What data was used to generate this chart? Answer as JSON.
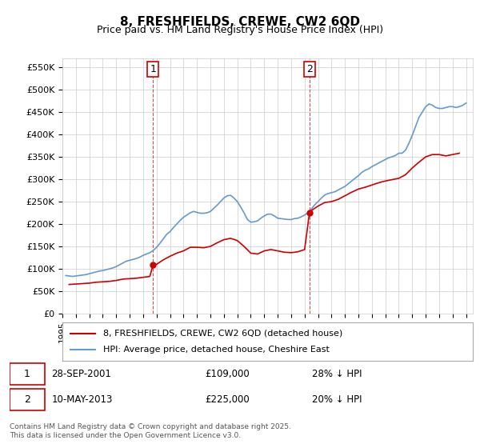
{
  "title": "8, FRESHFIELDS, CREWE, CW2 6QD",
  "subtitle": "Price paid vs. HM Land Registry's House Price Index (HPI)",
  "ylabel_ticks": [
    "£0",
    "£50K",
    "£100K",
    "£150K",
    "£200K",
    "£250K",
    "£300K",
    "£350K",
    "£400K",
    "£450K",
    "£500K",
    "£550K"
  ],
  "ytick_values": [
    0,
    50000,
    100000,
    150000,
    200000,
    250000,
    300000,
    350000,
    400000,
    450000,
    500000,
    550000
  ],
  "ylim": [
    0,
    570000
  ],
  "xlim_start": 1995.0,
  "xlim_end": 2025.5,
  "vline1_x": 2001.74,
  "vline2_x": 2013.36,
  "purchase1": {
    "label": "1",
    "date": "28-SEP-2001",
    "price": 109000,
    "text": "28-SEP-2001    £109,000    28% ↓ HPI"
  },
  "purchase2": {
    "label": "2",
    "date": "10-MAY-2013",
    "price": 225000,
    "text": "10-MAY-2013    £225,000    20% ↓ HPI"
  },
  "legend_line1": "8, FRESHFIELDS, CREWE, CW2 6QD (detached house)",
  "legend_line2": "HPI: Average price, detached house, Cheshire East",
  "footer": "Contains HM Land Registry data © Crown copyright and database right 2025.\nThis data is licensed under the Open Government Licence v3.0.",
  "line_color_red": "#cc0000",
  "line_color_blue": "#6699cc",
  "background_color": "#ffffff",
  "grid_color": "#cccccc",
  "hpi_data": {
    "years": [
      1995.25,
      1995.5,
      1995.75,
      1996.0,
      1996.25,
      1996.5,
      1996.75,
      1997.0,
      1997.25,
      1997.5,
      1997.75,
      1998.0,
      1998.25,
      1998.5,
      1998.75,
      1999.0,
      1999.25,
      1999.5,
      1999.75,
      2000.0,
      2000.25,
      2000.5,
      2000.75,
      2001.0,
      2001.25,
      2001.5,
      2001.75,
      2002.0,
      2002.25,
      2002.5,
      2002.75,
      2003.0,
      2003.25,
      2003.5,
      2003.75,
      2004.0,
      2004.25,
      2004.5,
      2004.75,
      2005.0,
      2005.25,
      2005.5,
      2005.75,
      2006.0,
      2006.25,
      2006.5,
      2006.75,
      2007.0,
      2007.25,
      2007.5,
      2007.75,
      2008.0,
      2008.25,
      2008.5,
      2008.75,
      2009.0,
      2009.25,
      2009.5,
      2009.75,
      2010.0,
      2010.25,
      2010.5,
      2010.75,
      2011.0,
      2011.25,
      2011.5,
      2011.75,
      2012.0,
      2012.25,
      2012.5,
      2012.75,
      2013.0,
      2013.25,
      2013.5,
      2013.75,
      2014.0,
      2014.25,
      2014.5,
      2014.75,
      2015.0,
      2015.25,
      2015.5,
      2015.75,
      2016.0,
      2016.25,
      2016.5,
      2016.75,
      2017.0,
      2017.25,
      2017.5,
      2017.75,
      2018.0,
      2018.25,
      2018.5,
      2018.75,
      2019.0,
      2019.25,
      2019.5,
      2019.75,
      2020.0,
      2020.25,
      2020.5,
      2020.75,
      2021.0,
      2021.25,
      2021.5,
      2021.75,
      2022.0,
      2022.25,
      2022.5,
      2022.75,
      2023.0,
      2023.25,
      2023.5,
      2023.75,
      2024.0,
      2024.25,
      2024.5,
      2024.75,
      2025.0
    ],
    "values": [
      85000,
      84000,
      83000,
      84000,
      85000,
      86000,
      87000,
      89000,
      91000,
      93000,
      95000,
      96000,
      98000,
      100000,
      102000,
      105000,
      109000,
      113000,
      117000,
      119000,
      121000,
      123000,
      126000,
      130000,
      133000,
      136000,
      141000,
      148000,
      157000,
      167000,
      177000,
      183000,
      192000,
      200000,
      208000,
      215000,
      220000,
      225000,
      228000,
      226000,
      224000,
      224000,
      225000,
      228000,
      235000,
      242000,
      250000,
      258000,
      263000,
      264000,
      258000,
      250000,
      238000,
      225000,
      210000,
      204000,
      205000,
      207000,
      213000,
      218000,
      222000,
      222000,
      218000,
      213000,
      212000,
      211000,
      210000,
      210000,
      212000,
      213000,
      216000,
      220000,
      225000,
      233000,
      243000,
      250000,
      258000,
      265000,
      268000,
      270000,
      272000,
      276000,
      280000,
      284000,
      290000,
      296000,
      302000,
      308000,
      315000,
      320000,
      323000,
      328000,
      332000,
      336000,
      340000,
      344000,
      348000,
      350000,
      353000,
      358000,
      358000,
      365000,
      380000,
      398000,
      418000,
      438000,
      450000,
      462000,
      468000,
      465000,
      460000,
      458000,
      458000,
      460000,
      462000,
      462000,
      460000,
      462000,
      465000,
      470000
    ]
  },
  "price_data": {
    "years": [
      1995.5,
      1996.0,
      1996.5,
      1997.0,
      1997.5,
      1998.0,
      1998.5,
      1999.0,
      1999.5,
      2000.0,
      2000.5,
      2001.0,
      2001.5,
      2001.74,
      2002.0,
      2002.5,
      2003.0,
      2003.5,
      2004.0,
      2004.5,
      2005.0,
      2005.5,
      2006.0,
      2006.5,
      2007.0,
      2007.5,
      2008.0,
      2008.5,
      2009.0,
      2009.5,
      2010.0,
      2010.5,
      2011.0,
      2011.5,
      2012.0,
      2012.5,
      2013.0,
      2013.36,
      2013.5,
      2014.0,
      2014.5,
      2015.0,
      2015.5,
      2016.0,
      2016.5,
      2017.0,
      2017.5,
      2018.0,
      2018.5,
      2019.0,
      2019.5,
      2020.0,
      2020.5,
      2021.0,
      2021.5,
      2022.0,
      2022.5,
      2023.0,
      2023.5,
      2024.0,
      2024.5
    ],
    "values": [
      65000,
      66000,
      67000,
      68000,
      70000,
      71000,
      72000,
      74000,
      77000,
      78000,
      79000,
      81000,
      83000,
      109000,
      110000,
      120000,
      128000,
      135000,
      140000,
      148000,
      148000,
      147000,
      150000,
      158000,
      165000,
      168000,
      163000,
      150000,
      135000,
      133000,
      140000,
      143000,
      140000,
      137000,
      136000,
      138000,
      143000,
      225000,
      230000,
      240000,
      248000,
      250000,
      255000,
      263000,
      271000,
      278000,
      282000,
      287000,
      292000,
      296000,
      299000,
      302000,
      310000,
      325000,
      338000,
      350000,
      355000,
      355000,
      352000,
      355000,
      358000
    ]
  }
}
